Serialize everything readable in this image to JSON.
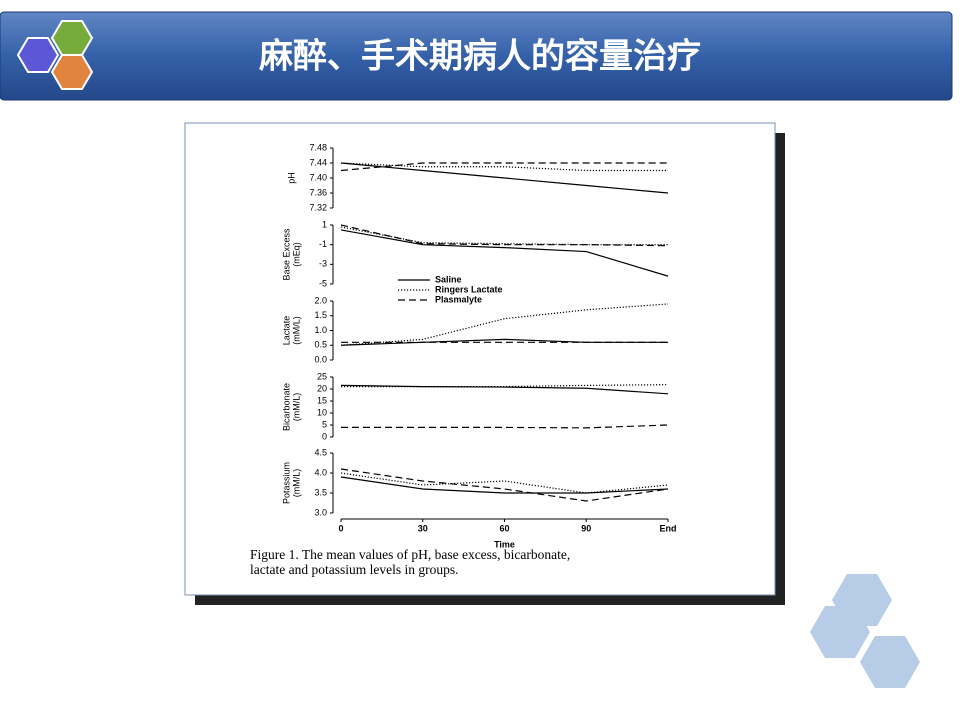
{
  "title": "麻醉、手术期病人的容量治疗",
  "figure_caption": [
    "Figure 1. The mean values of pH, base excess, bicarbonate,",
    "lactate and potassium levels in groups."
  ],
  "chart_data": [
    {
      "type": "line",
      "ylabel": [
        "pH"
      ],
      "ylim": [
        7.32,
        7.48
      ],
      "yticks": [
        7.32,
        7.36,
        {
          "value": 7.4,
          "label": "7.40"
        },
        7.44,
        7.48
      ],
      "series": [
        {
          "color": "#000",
          "style": "solid",
          "values": [
            7.44,
            7.42,
            7.4,
            7.38,
            7.36
          ]
        },
        {
          "color": "#000",
          "style": "dotted",
          "values": [
            7.44,
            7.43,
            7.43,
            7.42,
            7.42
          ]
        },
        {
          "color": "#000",
          "style": "dashed",
          "values": [
            7.42,
            7.44,
            7.44,
            7.44,
            7.44
          ]
        }
      ]
    },
    {
      "type": "line",
      "ylabel": [
        "Base Excess",
        "(mEq)"
      ],
      "ylim": [
        -5,
        1
      ],
      "yticks": [
        -5,
        -3,
        -1,
        1
      ],
      "legend": "lower-left",
      "series": [
        {
          "name": "Saline",
          "color": "#000",
          "style": "solid",
          "values": [
            0.5,
            -1,
            -1.3,
            -1.7,
            -4.2
          ]
        },
        {
          "name": "Ringers Lactate",
          "color": "#000",
          "style": "dotted",
          "values": [
            0.8,
            -0.8,
            -0.9,
            -1,
            -1
          ]
        },
        {
          "name": "Plasmalyte",
          "color": "#000",
          "style": "dashed",
          "values": [
            1,
            -0.9,
            -1,
            -1,
            -1.1
          ]
        }
      ]
    },
    {
      "type": "line",
      "ylabel": [
        "Lactate",
        "(mM/L)"
      ],
      "ylim": [
        0,
        2
      ],
      "yticks": [
        {
          "value": 0,
          "label": "0.0"
        },
        0.5,
        {
          "value": 1,
          "label": "1.0"
        },
        1.5,
        {
          "value": 2,
          "label": "2.0"
        }
      ],
      "series": [
        {
          "color": "#000",
          "style": "solid",
          "values": [
            0.5,
            0.6,
            0.7,
            0.6,
            0.6
          ]
        },
        {
          "color": "#000",
          "style": "dotted",
          "values": [
            0.5,
            0.7,
            1.4,
            1.7,
            1.9
          ]
        },
        {
          "color": "#000",
          "style": "dashed",
          "values": [
            0.6,
            0.6,
            0.6,
            0.6,
            0.6
          ]
        }
      ]
    },
    {
      "type": "line",
      "ylabel": [
        "Bicarbonate",
        "(mM/L)"
      ],
      "ylim": [
        0,
        25
      ],
      "yticks": [
        0,
        5,
        10,
        15,
        20,
        25
      ],
      "series": [
        {
          "color": "#000",
          "style": "solid",
          "values": [
            21.5,
            21,
            20.8,
            20.3,
            18
          ]
        },
        {
          "color": "#000",
          "style": "dotted",
          "values": [
            21,
            21,
            21,
            21.5,
            21.8
          ]
        },
        {
          "color": "#000",
          "style": "dashed",
          "values": [
            4,
            4,
            4,
            3.8,
            5
          ]
        }
      ]
    },
    {
      "type": "line",
      "ylabel": [
        "Potassium",
        "(mM/L)"
      ],
      "ylim": [
        3,
        4.5
      ],
      "yticks": [
        {
          "value": 3,
          "label": "3.0"
        },
        3.5,
        {
          "value": 4,
          "label": "4.0"
        },
        4.5
      ],
      "categories": [
        "0",
        "30",
        "60",
        "90",
        "End"
      ],
      "xlabel": "Time",
      "series": [
        {
          "color": "#000",
          "style": "solid",
          "values": [
            3.9,
            3.6,
            3.5,
            3.5,
            3.6
          ]
        },
        {
          "color": "#000",
          "style": "dotted",
          "values": [
            4.0,
            3.7,
            3.8,
            3.5,
            3.7
          ]
        },
        {
          "color": "#000",
          "style": "dashed",
          "values": [
            4.1,
            3.8,
            3.6,
            3.3,
            3.6
          ]
        }
      ]
    }
  ]
}
